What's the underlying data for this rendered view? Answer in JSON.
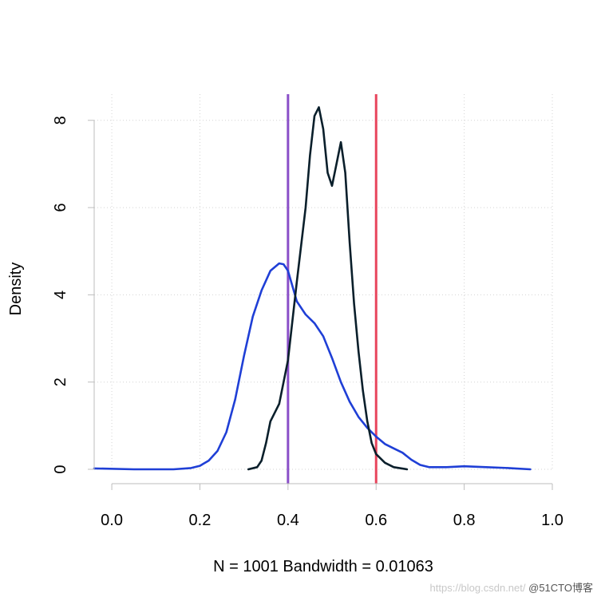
{
  "chart_data": {
    "type": "line",
    "title": "",
    "xlabel": "N = 1001   Bandwidth = 0.01063",
    "ylabel": "Density",
    "xlim": [
      -0.04,
      1.0
    ],
    "ylim": [
      0,
      8.6
    ],
    "x_ticks": [
      "0.0",
      "0.2",
      "0.4",
      "0.6",
      "0.8",
      "1.0"
    ],
    "y_ticks": [
      "0",
      "2",
      "4",
      "6",
      "8"
    ],
    "grid": true,
    "series": [
      {
        "color": "#1f3fd6",
        "x": [
          -0.04,
          0.05,
          0.14,
          0.18,
          0.2,
          0.22,
          0.24,
          0.26,
          0.28,
          0.3,
          0.32,
          0.34,
          0.36,
          0.38,
          0.39,
          0.4,
          0.41,
          0.42,
          0.44,
          0.46,
          0.48,
          0.5,
          0.52,
          0.54,
          0.56,
          0.58,
          0.6,
          0.62,
          0.64,
          0.66,
          0.68,
          0.7,
          0.72,
          0.76,
          0.8,
          0.85,
          0.9,
          0.95
        ],
        "y": [
          0.02,
          0.0,
          0.0,
          0.03,
          0.08,
          0.2,
          0.42,
          0.85,
          1.6,
          2.6,
          3.5,
          4.1,
          4.55,
          4.72,
          4.7,
          4.55,
          4.2,
          3.85,
          3.55,
          3.35,
          3.05,
          2.55,
          2.0,
          1.55,
          1.2,
          0.95,
          0.75,
          0.58,
          0.48,
          0.38,
          0.22,
          0.1,
          0.05,
          0.05,
          0.07,
          0.05,
          0.03,
          0.0
        ]
      },
      {
        "color": "#0a1f2b",
        "x": [
          0.31,
          0.33,
          0.34,
          0.35,
          0.36,
          0.38,
          0.4,
          0.42,
          0.44,
          0.45,
          0.46,
          0.47,
          0.48,
          0.49,
          0.5,
          0.51,
          0.52,
          0.53,
          0.54,
          0.55,
          0.56,
          0.57,
          0.58,
          0.59,
          0.6,
          0.62,
          0.64,
          0.67
        ],
        "y": [
          0.0,
          0.05,
          0.2,
          0.6,
          1.1,
          1.5,
          2.5,
          4.3,
          6.0,
          7.2,
          8.1,
          8.3,
          7.8,
          6.8,
          6.5,
          7.0,
          7.5,
          6.8,
          5.2,
          3.8,
          2.7,
          1.8,
          1.1,
          0.6,
          0.35,
          0.15,
          0.05,
          0.0
        ]
      }
    ],
    "vlines": [
      {
        "x": 0.4,
        "color": "#8a4fc8"
      },
      {
        "x": 0.6,
        "color": "#e8455c"
      }
    ]
  },
  "watermark": {
    "url": "https://blog.csdn.net/",
    "brand": "@51CTO博客"
  }
}
